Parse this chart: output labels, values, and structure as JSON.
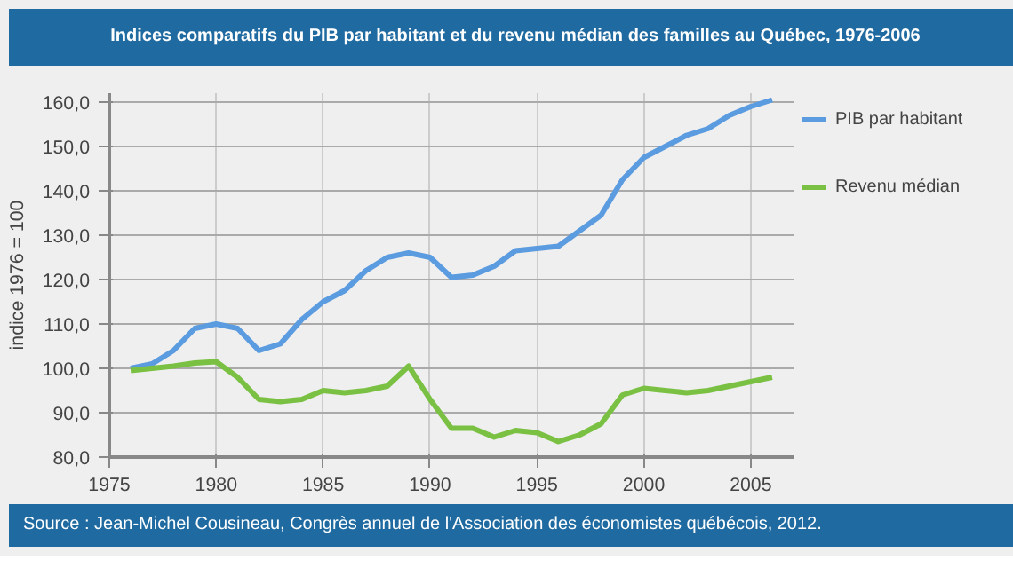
{
  "chart_data": {
    "type": "line",
    "title": "Indices comparatifs du PIB par habitant et du revenu médian des familles au Québec, 1976-2006",
    "ylabel": "indice 1976 = 100",
    "x": [
      1976,
      1977,
      1978,
      1979,
      1980,
      1981,
      1982,
      1983,
      1984,
      1985,
      1986,
      1987,
      1988,
      1989,
      1990,
      1991,
      1992,
      1993,
      1994,
      1995,
      1996,
      1997,
      1998,
      1999,
      2000,
      2001,
      2002,
      2003,
      2004,
      2005,
      2006
    ],
    "series": [
      {
        "name": "PIB par habitant",
        "color": "#5b9be0",
        "values": [
          100,
          101,
          104,
          109,
          110,
          109,
          104,
          105.5,
          111,
          115,
          117.5,
          122,
          125,
          126,
          125,
          120.5,
          121,
          123,
          126.5,
          127,
          127.5,
          131,
          134.5,
          142.5,
          147.5,
          150,
          152.5,
          154,
          157,
          159,
          160.5
        ]
      },
      {
        "name": "Revenu médian",
        "color": "#7ac143",
        "values": [
          99.5,
          100,
          100.5,
          101.2,
          101.5,
          98,
          93,
          92.5,
          93,
          95,
          94.5,
          95,
          96,
          100.5,
          93,
          86.5,
          86.5,
          84.5,
          86,
          85.5,
          83.5,
          85,
          87.5,
          94,
          95.5,
          95,
          94.5,
          95,
          96,
          97,
          98
        ]
      }
    ],
    "xlim": [
      1975,
      2007
    ],
    "xticks": [
      1975,
      1980,
      1985,
      1990,
      1995,
      2000,
      2005
    ],
    "ylim": [
      80,
      162
    ],
    "yticks": [
      {
        "value": 80,
        "label": "80,0"
      },
      {
        "value": 90,
        "label": "90,0"
      },
      {
        "value": 100,
        "label": "100,0"
      },
      {
        "value": 110,
        "label": "110,0"
      },
      {
        "value": 120,
        "label": "120,0"
      },
      {
        "value": 130,
        "label": "130,0"
      },
      {
        "value": 140,
        "label": "140,0"
      },
      {
        "value": 150,
        "label": "150,0"
      },
      {
        "value": 160,
        "label": "160,0"
      }
    ],
    "grid": true,
    "legend": "right",
    "line_style": "solid",
    "annotations": [
      "Source : Jean-Michel Cousineau, Congrès annuel de l'Association des économistes québécois, 2012."
    ]
  }
}
